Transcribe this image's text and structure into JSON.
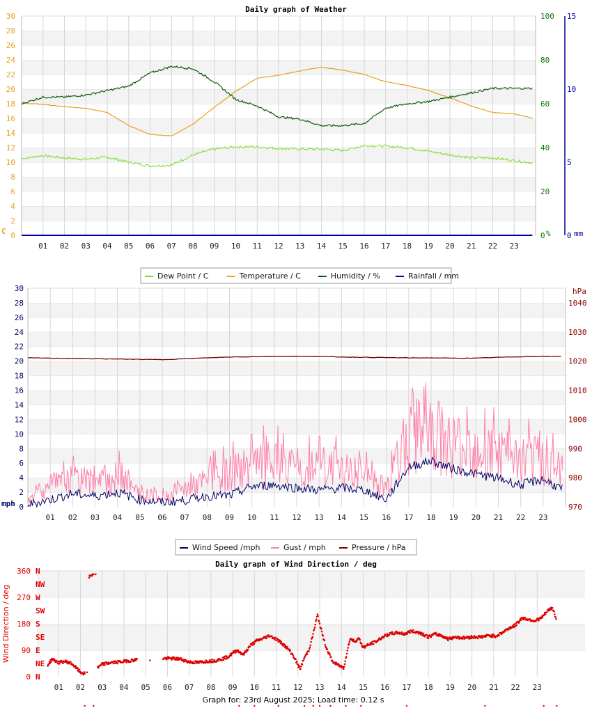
{
  "footer": "Graph for: 23rd August 2025; Load time: 0.12 s",
  "colors": {
    "dew": "#77dd22",
    "temp": "#e8a020",
    "humidity": "#0a5e0a",
    "rain": "#0000aa",
    "wind": "#000066",
    "gust": "#ff7fa8",
    "pressure": "#770000",
    "dir": "#dd0000",
    "axis_orange": "#e8a020",
    "axis_green": "#117711",
    "axis_blue": "#000099",
    "axis_navy": "#000066",
    "axis_maroon": "#880000",
    "axis_red": "#dd0000"
  },
  "chart_data": [
    {
      "type": "line",
      "title": "Daily graph of Weather",
      "x_ticks": [
        "01",
        "02",
        "03",
        "04",
        "05",
        "06",
        "07",
        "08",
        "09",
        "10",
        "11",
        "12",
        "13",
        "14",
        "15",
        "16",
        "17",
        "18",
        "19",
        "20",
        "21",
        "22",
        "23"
      ],
      "left_axis": {
        "unit": "C",
        "ylim": [
          0,
          30
        ],
        "ticks": [
          "0",
          "2",
          "4",
          "6",
          "8",
          "10",
          "12",
          "14",
          "16",
          "18",
          "20",
          "22",
          "24",
          "26",
          "28",
          "30"
        ]
      },
      "right_axis_1": {
        "unit": "%",
        "ylim": [
          0,
          100
        ],
        "ticks": [
          "0",
          "20",
          "40",
          "60",
          "80",
          "100"
        ]
      },
      "right_axis_2": {
        "unit": "mm",
        "ylim": [
          0,
          15
        ],
        "ticks": [
          "0",
          "5",
          "10",
          "15"
        ]
      },
      "grid": true,
      "legend_position": "bottom",
      "x_hours": [
        0,
        1,
        2,
        3,
        4,
        5,
        6,
        7,
        8,
        9,
        10,
        11,
        12,
        13,
        14,
        15,
        16,
        17,
        18,
        19,
        20,
        21,
        22,
        23,
        23.9
      ],
      "series": [
        {
          "name": "Dew Point / C",
          "axis": "left",
          "values": [
            10.5,
            10.9,
            10.6,
            10.4,
            10.7,
            10.0,
            9.5,
            9.6,
            11.0,
            11.8,
            12.1,
            12.1,
            11.9,
            11.8,
            11.8,
            11.6,
            12.3,
            12.2,
            12.0,
            11.5,
            11.0,
            10.6,
            10.6,
            10.2,
            9.9
          ]
        },
        {
          "name": "Temperature / C",
          "axis": "left",
          "values": [
            18.1,
            17.9,
            17.6,
            17.4,
            16.8,
            15.0,
            13.8,
            13.6,
            15.2,
            17.5,
            19.7,
            21.5,
            21.9,
            22.5,
            23.0,
            22.6,
            22.0,
            21.0,
            20.5,
            19.8,
            18.8,
            17.7,
            16.8,
            16.6,
            16.0
          ]
        },
        {
          "name": "Humidity / %",
          "axis": "right1",
          "values": [
            60,
            63,
            63,
            64,
            66,
            68,
            74,
            77,
            76,
            70,
            62,
            59,
            54,
            53,
            50,
            50,
            51,
            58,
            60,
            61,
            63,
            65,
            67,
            67,
            67
          ]
        },
        {
          "name": "Rainfall / mm",
          "axis": "right2",
          "values": [
            0,
            0,
            0,
            0,
            0,
            0,
            0,
            0,
            0,
            0,
            0,
            0,
            0,
            0,
            0,
            0,
            0,
            0,
            0,
            0,
            0,
            0,
            0,
            0,
            0
          ]
        }
      ]
    },
    {
      "type": "line",
      "title": "",
      "x_ticks": [
        "01",
        "02",
        "03",
        "04",
        "05",
        "06",
        "07",
        "08",
        "09",
        "10",
        "11",
        "12",
        "13",
        "14",
        "15",
        "16",
        "17",
        "18",
        "19",
        "20",
        "21",
        "22",
        "23"
      ],
      "left_axis": {
        "unit": "mph",
        "ylim": [
          0,
          30
        ],
        "ticks": [
          "0",
          "2",
          "4",
          "6",
          "8",
          "10",
          "12",
          "14",
          "16",
          "18",
          "20",
          "22",
          "24",
          "26",
          "28",
          "30"
        ]
      },
      "right_axis": {
        "unit": "hPa",
        "ylim": [
          970,
          1045
        ],
        "ticks": [
          "970",
          "980",
          "990",
          "1000",
          "1010",
          "1020",
          "1030",
          "1040"
        ]
      },
      "grid": true,
      "legend_position": "bottom",
      "x_hours": [
        0,
        1,
        2,
        3,
        4,
        5,
        6,
        7,
        8,
        9,
        10,
        11,
        12,
        13,
        14,
        15,
        16,
        17,
        18,
        19,
        20,
        21,
        22,
        23,
        23.9
      ],
      "series": [
        {
          "name": "Wind Speed /mph",
          "axis": "left",
          "values": [
            0.3,
            1.0,
            1.8,
            1.5,
            2.0,
            1.0,
            0.6,
            0.9,
            1.5,
            1.5,
            2.8,
            3.0,
            2.6,
            2.3,
            2.6,
            2.3,
            1.0,
            5.5,
            6.3,
            5.2,
            4.5,
            3.9,
            3.0,
            3.8,
            2.3
          ]
        },
        {
          "name": "Gust / mph",
          "axis": "left",
          "values": [
            1.0,
            3.0,
            4.0,
            3.5,
            4.5,
            2.0,
            1.5,
            2.5,
            4.0,
            5.0,
            6.0,
            6.5,
            5.5,
            5.5,
            5.5,
            4.5,
            3.0,
            10.5,
            11.0,
            9.5,
            9.0,
            8.0,
            7.0,
            7.0,
            5.0
          ]
        },
        {
          "name": "Pressure / hPa",
          "axis": "right",
          "values": [
            1021.1,
            1021.0,
            1020.9,
            1020.8,
            1020.7,
            1020.6,
            1020.5,
            1020.8,
            1021.1,
            1021.4,
            1021.5,
            1021.6,
            1021.6,
            1021.6,
            1021.4,
            1021.3,
            1021.2,
            1021.1,
            1021.1,
            1021.0,
            1021.0,
            1021.3,
            1021.5,
            1021.6,
            1021.6
          ]
        }
      ]
    },
    {
      "type": "scatter",
      "title": "Daily graph of Wind Direction / deg",
      "ylabel": "Wind Direction / deg",
      "x_ticks": [
        "01",
        "02",
        "03",
        "04",
        "05",
        "06",
        "07",
        "08",
        "09",
        "10",
        "11",
        "12",
        "13",
        "14",
        "15",
        "16",
        "17",
        "18",
        "19",
        "20",
        "21",
        "22",
        "23"
      ],
      "y_ticks": [
        "0",
        "90",
        "180",
        "270",
        "360"
      ],
      "compass": [
        "N",
        "NE",
        "E",
        "SE",
        "S",
        "SW",
        "W",
        "NW",
        "N"
      ],
      "ylim": [
        0,
        360
      ],
      "grid": true,
      "points": [
        [
          0.5,
          40
        ],
        [
          0.7,
          60
        ],
        [
          1.0,
          48
        ],
        [
          1.3,
          52
        ],
        [
          1.6,
          45
        ],
        [
          1.8,
          30
        ],
        [
          2.0,
          15
        ],
        [
          2.2,
          10
        ],
        [
          2.4,
          340
        ],
        [
          2.6,
          350
        ],
        [
          2.8,
          30
        ],
        [
          3.0,
          42
        ],
        [
          3.4,
          48
        ],
        [
          3.8,
          50
        ],
        [
          4.0,
          52
        ],
        [
          4.3,
          55
        ],
        [
          4.6,
          58
        ],
        [
          5.8,
          62
        ],
        [
          6.2,
          62
        ],
        [
          6.6,
          60
        ],
        [
          7.0,
          50
        ],
        [
          7.4,
          48
        ],
        [
          7.8,
          52
        ],
        [
          8.2,
          55
        ],
        [
          8.5,
          60
        ],
        [
          8.8,
          68
        ],
        [
          9.0,
          80
        ],
        [
          9.2,
          90
        ],
        [
          9.5,
          75
        ],
        [
          9.8,
          105
        ],
        [
          10.1,
          122
        ],
        [
          10.4,
          130
        ],
        [
          10.7,
          140
        ],
        [
          11.0,
          128
        ],
        [
          11.3,
          112
        ],
        [
          11.6,
          90
        ],
        [
          11.8,
          70
        ],
        [
          12.1,
          25
        ],
        [
          12.3,
          65
        ],
        [
          12.5,
          90
        ],
        [
          12.7,
          145
        ],
        [
          12.9,
          210
        ],
        [
          13.1,
          150
        ],
        [
          13.3,
          100
        ],
        [
          13.6,
          50
        ],
        [
          14.1,
          30
        ],
        [
          14.4,
          130
        ],
        [
          14.6,
          120
        ],
        [
          14.8,
          130
        ],
        [
          15.0,
          100
        ],
        [
          15.3,
          110
        ],
        [
          15.6,
          120
        ],
        [
          15.9,
          135
        ],
        [
          16.2,
          145
        ],
        [
          16.6,
          150
        ],
        [
          16.9,
          145
        ],
        [
          17.2,
          155
        ],
        [
          17.6,
          150
        ],
        [
          18.0,
          135
        ],
        [
          18.3,
          145
        ],
        [
          18.6,
          140
        ],
        [
          18.9,
          128
        ],
        [
          19.2,
          135
        ],
        [
          19.6,
          132
        ],
        [
          20.0,
          135
        ],
        [
          20.4,
          135
        ],
        [
          20.8,
          140
        ],
        [
          21.1,
          138
        ],
        [
          21.4,
          150
        ],
        [
          21.7,
          165
        ],
        [
          22.0,
          175
        ],
        [
          22.3,
          200
        ],
        [
          22.6,
          195
        ],
        [
          22.9,
          190
        ],
        [
          23.2,
          200
        ],
        [
          23.5,
          225
        ],
        [
          23.7,
          235
        ],
        [
          23.9,
          190
        ]
      ]
    }
  ],
  "legends": [
    [
      {
        "name": "Dew Point / C",
        "color": "#77dd22"
      },
      {
        "name": "Temperature / C",
        "color": "#e8a020"
      },
      {
        "name": "Humidity / %",
        "color": "#0a5e0a"
      },
      {
        "name": "Rainfall / mm",
        "color": "#0000aa"
      }
    ],
    [
      {
        "name": "Wind Speed /mph",
        "color": "#000066"
      },
      {
        "name": "Gust / mph",
        "color": "#ff7fa8"
      },
      {
        "name": "Pressure / hPa",
        "color": "#770000"
      }
    ]
  ]
}
